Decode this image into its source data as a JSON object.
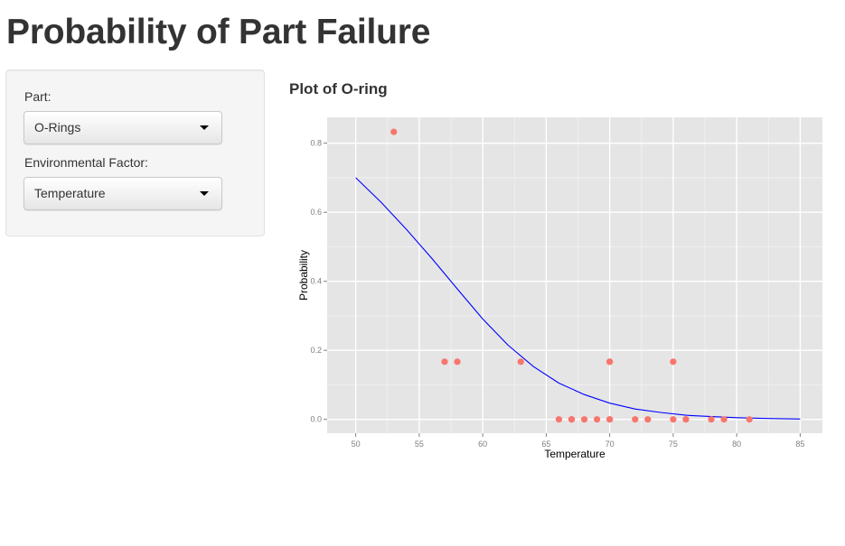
{
  "page": {
    "title": "Probability of Part Failure"
  },
  "sidebar": {
    "part_label": "Part:",
    "part_value": "O-Rings",
    "factor_label": "Environmental Factor:",
    "factor_value": "Temperature"
  },
  "plot": {
    "title": "Plot of O-ring"
  },
  "colors": {
    "points": "#f8766d",
    "curve": "#0000ff",
    "panel": "#e5e5e5"
  },
  "chart_data": {
    "type": "scatter",
    "xlabel": "Temperature",
    "ylabel": "Probability",
    "xlim": [
      47.75,
      86.75
    ],
    "ylim": [
      -0.04,
      0.875
    ],
    "xticks": [
      50,
      55,
      60,
      65,
      70,
      75,
      80,
      85
    ],
    "yticks": [
      0.0,
      0.2,
      0.4,
      0.6,
      0.8
    ],
    "xtick_labels": [
      "50",
      "55",
      "60",
      "65",
      "70",
      "75",
      "80",
      "85"
    ],
    "ytick_labels": [
      "0.0",
      "0.2",
      "0.4",
      "0.6",
      "0.8"
    ],
    "grid": true,
    "points": [
      {
        "x": 53,
        "y": 0.833
      },
      {
        "x": 57,
        "y": 0.167
      },
      {
        "x": 58,
        "y": 0.167
      },
      {
        "x": 63,
        "y": 0.167
      },
      {
        "x": 66,
        "y": 0.0
      },
      {
        "x": 67,
        "y": 0.0
      },
      {
        "x": 67,
        "y": 0.0
      },
      {
        "x": 67,
        "y": 0.0
      },
      {
        "x": 68,
        "y": 0.0
      },
      {
        "x": 69,
        "y": 0.0
      },
      {
        "x": 70,
        "y": 0.0
      },
      {
        "x": 70,
        "y": 0.0
      },
      {
        "x": 70,
        "y": 0.167
      },
      {
        "x": 70,
        "y": 0.167
      },
      {
        "x": 72,
        "y": 0.0
      },
      {
        "x": 73,
        "y": 0.0
      },
      {
        "x": 75,
        "y": 0.0
      },
      {
        "x": 75,
        "y": 0.167
      },
      {
        "x": 76,
        "y": 0.0
      },
      {
        "x": 76,
        "y": 0.0
      },
      {
        "x": 78,
        "y": 0.0
      },
      {
        "x": 79,
        "y": 0.0
      },
      {
        "x": 81,
        "y": 0.0
      }
    ],
    "curve": [
      {
        "x": 50,
        "y": 0.7
      },
      {
        "x": 52,
        "y": 0.629
      },
      {
        "x": 54,
        "y": 0.55
      },
      {
        "x": 56,
        "y": 0.466
      },
      {
        "x": 58,
        "y": 0.378
      },
      {
        "x": 60,
        "y": 0.291
      },
      {
        "x": 62,
        "y": 0.215
      },
      {
        "x": 64,
        "y": 0.153
      },
      {
        "x": 66,
        "y": 0.105
      },
      {
        "x": 68,
        "y": 0.072
      },
      {
        "x": 70,
        "y": 0.047
      },
      {
        "x": 72,
        "y": 0.03
      },
      {
        "x": 74,
        "y": 0.02
      },
      {
        "x": 76,
        "y": 0.012
      },
      {
        "x": 78,
        "y": 0.008
      },
      {
        "x": 80,
        "y": 0.005
      },
      {
        "x": 82,
        "y": 0.003
      },
      {
        "x": 85,
        "y": 0.001
      }
    ]
  }
}
